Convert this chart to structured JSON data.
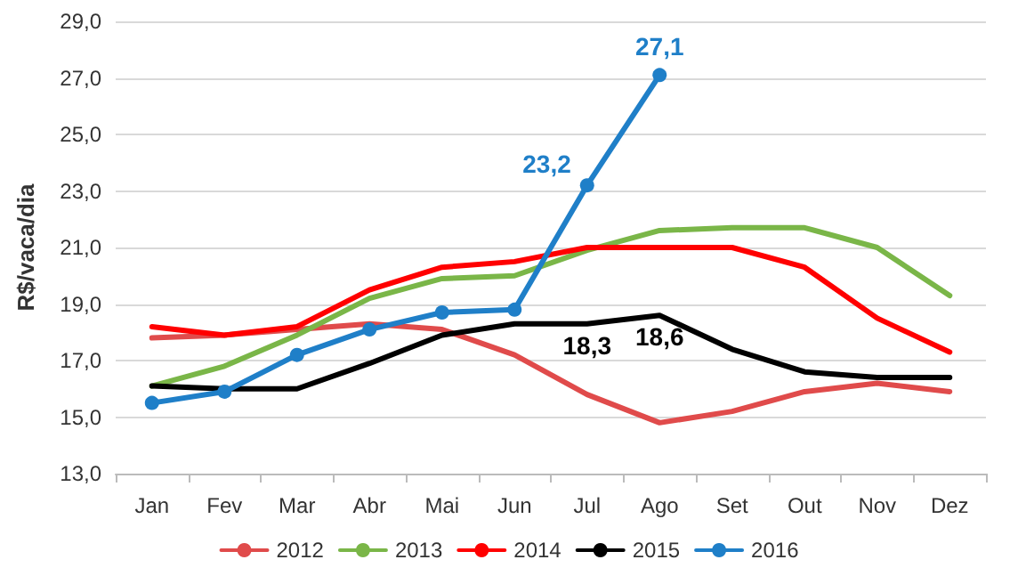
{
  "chart_data": {
    "type": "line",
    "ylabel": "R$/vaca/dia",
    "categories": [
      "Jan",
      "Fev",
      "Mar",
      "Abr",
      "Mai",
      "Jun",
      "Jul",
      "Ago",
      "Set",
      "Out",
      "Nov",
      "Dez"
    ],
    "series": [
      {
        "name": "2012",
        "color": "#e04b4b",
        "marker": "none",
        "values": [
          17.8,
          17.9,
          18.1,
          18.3,
          18.1,
          17.2,
          15.8,
          14.8,
          15.2,
          15.9,
          16.2,
          15.9
        ]
      },
      {
        "name": "2013",
        "color": "#7ab648",
        "marker": "none",
        "values": [
          16.1,
          16.8,
          17.9,
          19.2,
          19.9,
          20.0,
          20.9,
          21.6,
          21.7,
          21.7,
          21.0,
          19.3
        ]
      },
      {
        "name": "2014",
        "color": "#ff0000",
        "marker": "none",
        "values": [
          18.2,
          17.9,
          18.2,
          19.5,
          20.3,
          20.5,
          21.0,
          21.0,
          21.0,
          20.3,
          18.5,
          17.3
        ]
      },
      {
        "name": "2015",
        "color": "#000000",
        "marker": "none",
        "values": [
          16.1,
          16.0,
          16.0,
          16.9,
          17.9,
          18.3,
          18.3,
          18.6,
          17.4,
          16.6,
          16.4,
          16.4
        ],
        "value_labels": [
          null,
          null,
          null,
          null,
          null,
          null,
          "18,3",
          "18,6",
          null,
          null,
          null,
          null
        ]
      },
      {
        "name": "2016",
        "color": "#1f7fc8",
        "marker": "circle",
        "values": [
          15.5,
          15.9,
          17.2,
          18.1,
          18.7,
          18.8,
          23.2,
          27.1,
          null,
          null,
          null,
          null
        ],
        "value_labels": [
          null,
          null,
          null,
          null,
          null,
          null,
          "23,2",
          "27,1",
          null,
          null,
          null,
          null
        ]
      }
    ],
    "ylim": [
      13,
      29
    ],
    "yticks": [
      {
        "value": 13,
        "label": "13,0"
      },
      {
        "value": 15,
        "label": "15,0"
      },
      {
        "value": 17,
        "label": "17,0"
      },
      {
        "value": 19,
        "label": "19,0"
      },
      {
        "value": 21,
        "label": "21,0"
      },
      {
        "value": 23,
        "label": "23,0"
      },
      {
        "value": 25,
        "label": "25,0"
      },
      {
        "value": 27,
        "label": "27,0"
      },
      {
        "value": 29,
        "label": "29,0"
      }
    ],
    "grid": "y",
    "legend": "bottom",
    "line_style": "solid"
  }
}
